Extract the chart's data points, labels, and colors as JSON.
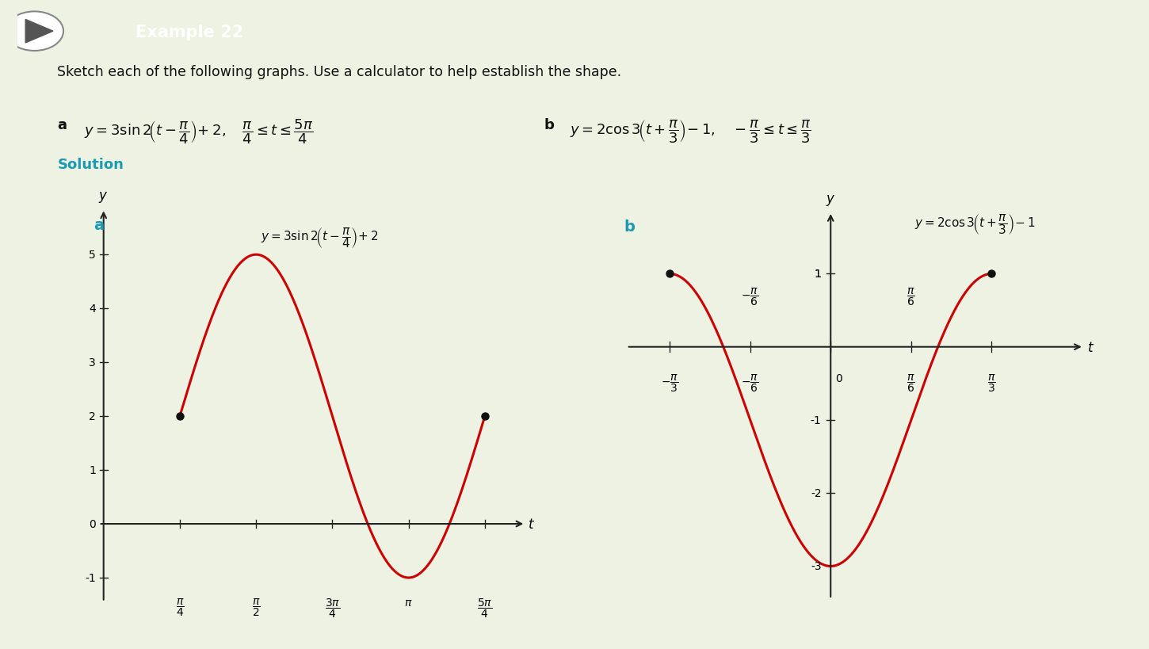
{
  "bg_color": "#eef2e2",
  "plot_bg_color": "#f5f5ea",
  "header_bg": "#1a9ab5",
  "header_text": "Example 22",
  "instruction_text": "Sketch each of the following graphs. Use a calculator to help establish the shape.",
  "solution_label": "Solution",
  "curve_color": "#cc0000",
  "dot_color": "#111111",
  "axis_color": "#222222",
  "text_color": "#111111",
  "teal_color": "#1a9ab5",
  "bold_color": "#333333"
}
